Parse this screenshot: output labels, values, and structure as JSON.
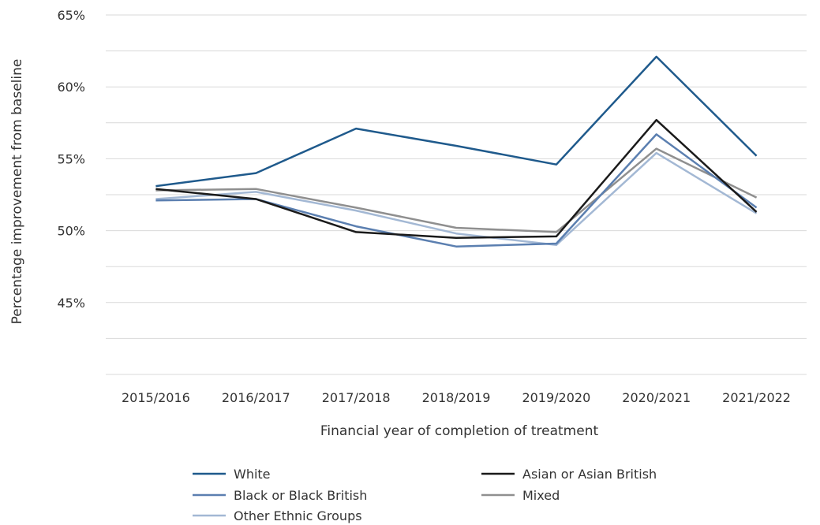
{
  "chart_data": {
    "type": "line",
    "title": "",
    "xlabel": "Financial year of completion of treatment",
    "ylabel": "Percentage improvement from baseline",
    "categories": [
      "2015/2016",
      "2016/2017",
      "2017/2018",
      "2018/2019",
      "2019/2020",
      "2020/2021",
      "2021/2022"
    ],
    "ylim": [
      40,
      65
    ],
    "yticks": [
      45,
      50,
      55,
      60,
      65
    ],
    "ytick_labels": [
      "45%",
      "50%",
      "55%",
      "60%",
      "65%"
    ],
    "grid": true,
    "legend_position": "bottom",
    "series": [
      {
        "name": "White",
        "color": "#1f5a8c",
        "values": [
          53.1,
          54.0,
          57.1,
          55.9,
          54.6,
          62.1,
          55.2
        ]
      },
      {
        "name": "Asian or Asian British",
        "color": "#1a1a1a",
        "values": [
          52.9,
          52.2,
          49.9,
          49.5,
          49.6,
          57.7,
          51.3
        ]
      },
      {
        "name": "Black or Black British",
        "color": "#5b7fb0",
        "values": [
          52.1,
          52.2,
          50.3,
          48.9,
          49.1,
          56.7,
          51.6
        ]
      },
      {
        "name": "Mixed",
        "color": "#8f8f8f",
        "values": [
          52.8,
          52.9,
          51.6,
          50.2,
          49.9,
          55.7,
          52.3
        ]
      },
      {
        "name": "Other Ethnic Groups",
        "color": "#a3b8d4",
        "values": [
          52.2,
          52.7,
          51.4,
          49.8,
          49.0,
          55.4,
          51.2
        ]
      }
    ]
  }
}
